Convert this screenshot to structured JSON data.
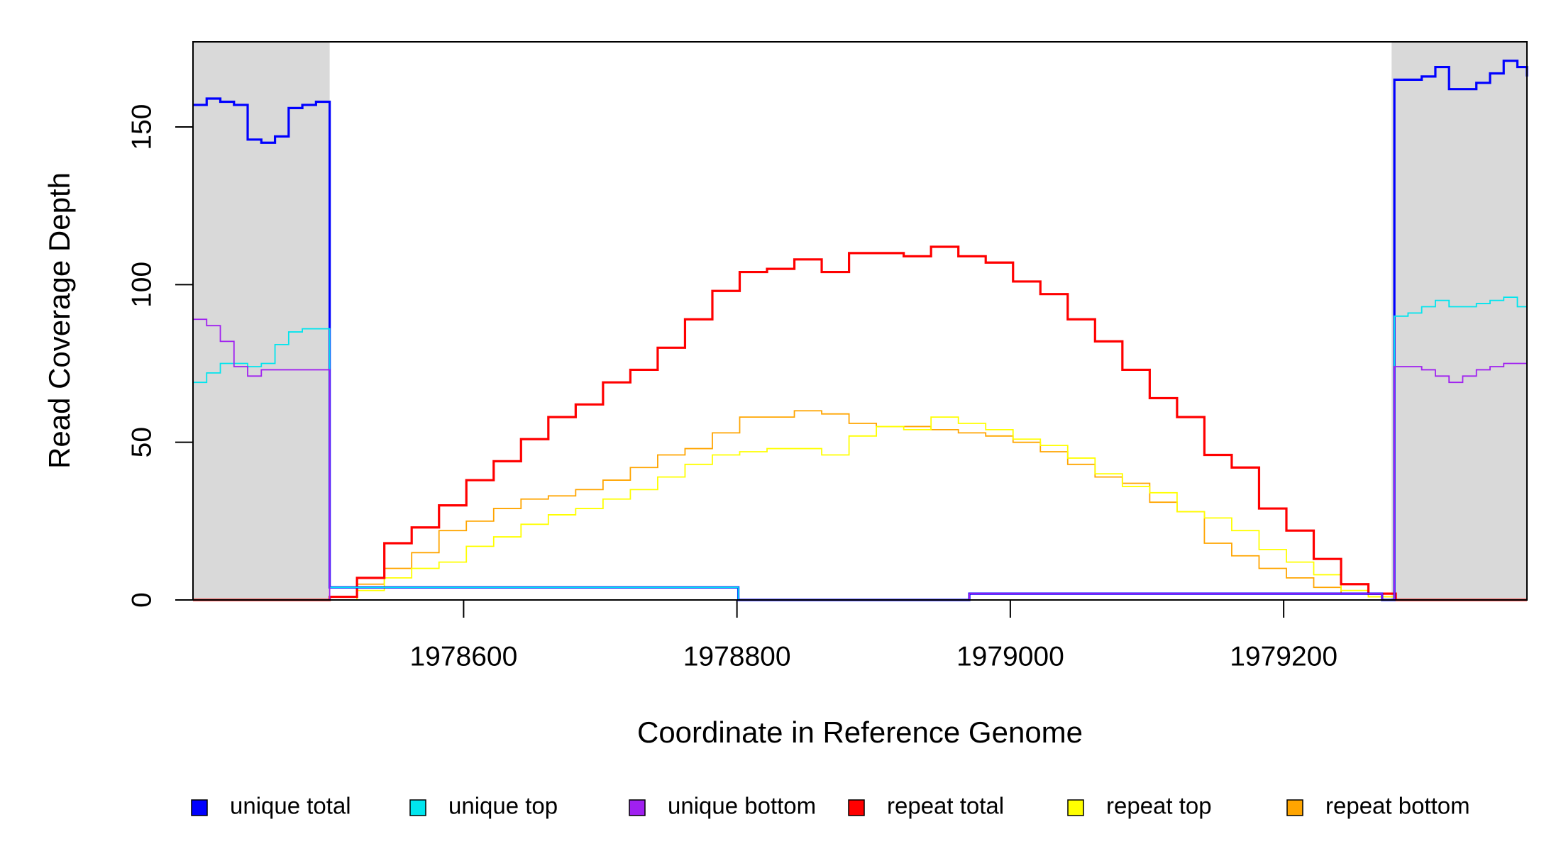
{
  "chart_data": {
    "type": "line",
    "step": true,
    "x_label": "Coordinate in Reference Genome",
    "y_label": "Read Coverage Depth",
    "xlim": [
      1978402,
      1979378
    ],
    "ylim": [
      0,
      177
    ],
    "xticks": [
      1978600,
      1978800,
      1979000,
      1979200
    ],
    "yticks": [
      0,
      50,
      100,
      150
    ],
    "shaded_regions": [
      [
        1978402,
        1978502
      ],
      [
        1979279,
        1979378
      ]
    ],
    "shade_color": "#d9d9d9",
    "legend": "bottom",
    "series": [
      {
        "name": "unique total",
        "color": "#0000ff",
        "x": [
          1978402,
          1978412,
          1978422,
          1978432,
          1978442,
          1978452,
          1978462,
          1978472,
          1978482,
          1978492,
          1978502,
          1978801,
          1978970,
          1979272,
          1979281,
          1979291,
          1979301,
          1979311,
          1979321,
          1979331,
          1979341,
          1979351,
          1979361,
          1979371,
          1979378
        ],
        "values": [
          157,
          159,
          158,
          157,
          146,
          145,
          147,
          156,
          157,
          158,
          4,
          0,
          2,
          0,
          165,
          165,
          166,
          169,
          162,
          162,
          164,
          167,
          171,
          169,
          166
        ]
      },
      {
        "name": "unique top",
        "color": "#00e5ee",
        "x": [
          1978402,
          1978412,
          1978422,
          1978432,
          1978442,
          1978452,
          1978462,
          1978472,
          1978482,
          1978492,
          1978502,
          1978801,
          1979281,
          1979291,
          1979301,
          1979311,
          1979321,
          1979331,
          1979341,
          1979351,
          1979361,
          1979371,
          1979378
        ],
        "values": [
          69,
          72,
          75,
          75,
          74,
          75,
          81,
          85,
          86,
          86,
          4,
          0,
          90,
          91,
          93,
          95,
          93,
          93,
          94,
          95,
          96,
          93,
          91
        ]
      },
      {
        "name": "unique bottom",
        "color": "#a020f0",
        "x": [
          1978402,
          1978412,
          1978422,
          1978432,
          1978442,
          1978452,
          1978462,
          1978472,
          1978482,
          1978492,
          1978502,
          1978970,
          1979272,
          1979281,
          1979291,
          1979301,
          1979311,
          1979321,
          1979331,
          1979341,
          1979351,
          1979361,
          1979371,
          1979378
        ],
        "values": [
          89,
          87,
          82,
          74,
          71,
          73,
          73,
          73,
          73,
          73,
          0,
          2,
          0,
          74,
          74,
          73,
          71,
          69,
          71,
          73,
          74,
          75,
          75,
          74
        ]
      },
      {
        "name": "repeat total",
        "color": "#ff0000",
        "x": [
          1978402,
          1978502,
          1978522,
          1978542,
          1978562,
          1978582,
          1978602,
          1978622,
          1978642,
          1978662,
          1978682,
          1978702,
          1978722,
          1978742,
          1978762,
          1978782,
          1978802,
          1978822,
          1978842,
          1978862,
          1978882,
          1978902,
          1978922,
          1978942,
          1978962,
          1978982,
          1979002,
          1979022,
          1979042,
          1979062,
          1979082,
          1979102,
          1979122,
          1979142,
          1979162,
          1979182,
          1979202,
          1979222,
          1979242,
          1979262,
          1979282
        ],
        "values": [
          0,
          1,
          7,
          18,
          23,
          30,
          38,
          44,
          51,
          58,
          62,
          69,
          73,
          80,
          89,
          98,
          104,
          105,
          108,
          104,
          110,
          110,
          109,
          112,
          109,
          107,
          101,
          97,
          89,
          82,
          73,
          64,
          58,
          46,
          42,
          29,
          22,
          13,
          5,
          2,
          0
        ]
      },
      {
        "name": "repeat top",
        "color": "#ffff00",
        "x": [
          1978402,
          1978502,
          1978522,
          1978542,
          1978562,
          1978582,
          1978602,
          1978622,
          1978642,
          1978662,
          1978682,
          1978702,
          1978722,
          1978742,
          1978762,
          1978782,
          1978802,
          1978822,
          1978842,
          1978862,
          1978882,
          1978902,
          1978922,
          1978942,
          1978962,
          1978982,
          1979002,
          1979022,
          1979042,
          1979062,
          1979082,
          1979102,
          1979122,
          1979142,
          1979162,
          1979182,
          1979202,
          1979222,
          1979242,
          1979262,
          1979282
        ],
        "values": [
          0,
          0,
          3,
          7,
          10,
          12,
          17,
          20,
          24,
          27,
          29,
          32,
          35,
          39,
          43,
          46,
          47,
          48,
          48,
          46,
          52,
          55,
          54,
          58,
          56,
          54,
          51,
          49,
          45,
          40,
          36,
          34,
          28,
          26,
          22,
          16,
          12,
          8,
          3,
          1,
          0
        ]
      },
      {
        "name": "repeat bottom",
        "color": "#ffa500",
        "x": [
          1978402,
          1978502,
          1978522,
          1978542,
          1978562,
          1978582,
          1978602,
          1978622,
          1978642,
          1978662,
          1978682,
          1978702,
          1978722,
          1978742,
          1978762,
          1978782,
          1978802,
          1978822,
          1978842,
          1978862,
          1978882,
          1978902,
          1978922,
          1978942,
          1978962,
          1978982,
          1979002,
          1979022,
          1979042,
          1979062,
          1979082,
          1979102,
          1979122,
          1979142,
          1979162,
          1979182,
          1979202,
          1979222,
          1979242,
          1979262,
          1979282
        ],
        "values": [
          0,
          0,
          5,
          10,
          15,
          22,
          25,
          29,
          32,
          33,
          35,
          38,
          42,
          46,
          48,
          53,
          58,
          58,
          60,
          59,
          56,
          55,
          55,
          54,
          53,
          52,
          50,
          47,
          43,
          39,
          37,
          31,
          28,
          18,
          14,
          10,
          7,
          4,
          2,
          1,
          0
        ]
      }
    ]
  }
}
